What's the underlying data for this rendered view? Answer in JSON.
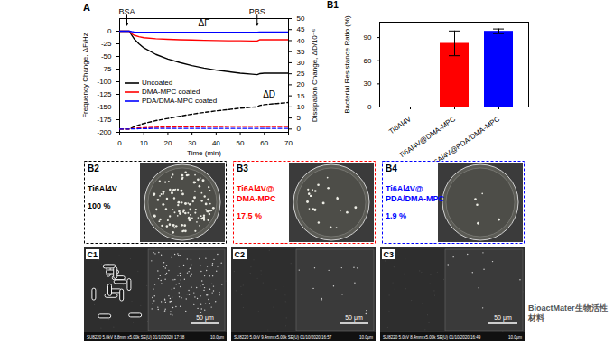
{
  "chart_data": [
    {
      "type": "line",
      "title": "A",
      "xlabel": "Time (min)",
      "ylabel": "Frequency Change, ΔF/Hz",
      "y2label": "Dissipation Change, ΔD/10⁻⁶",
      "x": [
        0,
        2,
        4,
        5,
        6,
        8,
        10,
        15,
        20,
        25,
        30,
        35,
        40,
        45,
        50,
        55,
        57,
        58,
        60,
        65,
        70
      ],
      "series": [
        {
          "name": "Uncoated",
          "color": "#000000",
          "line_style": "solid",
          "values": [
            0,
            0,
            0,
            -8,
            -15,
            -25,
            -33,
            -46,
            -55,
            -62,
            -68,
            -73,
            -77,
            -80,
            -83,
            -85,
            -86,
            -84,
            -83,
            -83,
            -83
          ]
        },
        {
          "name": "DMA-MPC coated",
          "color": "#ff0000",
          "line_style": "solid",
          "values": [
            0,
            0,
            0,
            -5,
            -8,
            -11,
            -13,
            -15,
            -16,
            -17,
            -17.5,
            -18,
            -18.5,
            -19,
            -19,
            -19.5,
            -19.5,
            -17,
            -17,
            -17,
            -17
          ]
        },
        {
          "name": "PDA/DMA-MPC coated",
          "color": "#0000ff",
          "line_style": "solid",
          "values": [
            0,
            0,
            0,
            -1,
            -1.5,
            -2,
            -2,
            -2,
            -2,
            -2,
            -2,
            -2,
            -2,
            -2,
            -2,
            -2,
            -2,
            -1.5,
            -1.5,
            -1.5,
            -1.5
          ]
        },
        {
          "name": "Uncoated",
          "color": "#000000",
          "line_style": "dashed",
          "axis": "y2",
          "values": [
            0,
            0,
            0,
            0.5,
            1,
            1.8,
            2.5,
            3.8,
            4.8,
            5.8,
            6.7,
            7.5,
            8.2,
            8.8,
            9.4,
            9.9,
            10,
            10.6,
            11,
            11.5,
            12
          ]
        },
        {
          "name": "DMA-MPC coated",
          "color": "#ff0000",
          "line_style": "dashed",
          "axis": "y2",
          "values": [
            0,
            0,
            0,
            0.2,
            0.3,
            0.5,
            0.6,
            0.8,
            0.9,
            1,
            1,
            1.1,
            1.1,
            1.2,
            1.2,
            1.2,
            1.2,
            1.1,
            1.1,
            1.1,
            1.1
          ]
        },
        {
          "name": "PDA/DMA-MPC coated",
          "color": "#0000ff",
          "line_style": "dashed",
          "axis": "y2",
          "values": [
            0,
            0,
            0,
            0.1,
            0.1,
            0.2,
            0.2,
            0.3,
            0.3,
            0.3,
            0.3,
            0.3,
            0.3,
            0.3,
            0.3,
            0.3,
            0.3,
            0.3,
            0.3,
            0.3,
            0.3
          ]
        }
      ],
      "xlim": [
        0,
        70
      ],
      "xticks": [
        0,
        10,
        20,
        30,
        40,
        50,
        60,
        70
      ],
      "ylim": [
        -200,
        25
      ],
      "yticks": [
        -200,
        -175,
        -150,
        -125,
        -100,
        -75,
        -50,
        -25,
        0
      ],
      "y2lim": [
        -1.5,
        50
      ],
      "y2ticks": [
        0,
        5,
        10,
        15,
        20,
        25,
        30,
        35,
        40,
        45,
        50
      ],
      "legend": "lower left",
      "annotations": [
        {
          "text": "BSA",
          "x": 3
        },
        {
          "text": "PBS",
          "x": 57
        },
        {
          "text": "ΔF",
          "x": 35,
          "y": 15
        },
        {
          "text": "ΔD",
          "x": 62,
          "y": -125
        }
      ]
    },
    {
      "type": "bar",
      "title": "B1",
      "ylabel": "Bacterial Resistance Ratio (%)",
      "categories": [
        "Ti6Al4V",
        "Ti6Al4V@DMA-MPC",
        "Ti6Al4V@PDA/DMA-MPC"
      ],
      "values": [
        0,
        82.5,
        98.1
      ],
      "errors": [
        0,
        16,
        3
      ],
      "colors": [
        "#000000",
        "#ff0000",
        "#0000ff"
      ],
      "ylim": [
        0,
        110
      ],
      "yticks": [
        0,
        30,
        60,
        90
      ]
    }
  ],
  "plates": [
    {
      "label": "B2",
      "sample": [
        "Ti6Al4V"
      ],
      "ratio": "100 %",
      "color": "#000000"
    },
    {
      "label": "B3",
      "sample": [
        "Ti6Al4V@",
        "DMA-MPC"
      ],
      "ratio": "17.5 %",
      "color": "#ff0000"
    },
    {
      "label": "B4",
      "sample": [
        "Ti6Al4V@",
        "PDA/DMA-MPC"
      ],
      "ratio": "1.9 %",
      "color": "#0000ff"
    }
  ],
  "sem": [
    {
      "label": "C1",
      "scale_bar": "50 μm",
      "info": "SU8220 5.0kV 8.8mm x5.00k SE(U) 01/10/2020 17:38",
      "info_scale": "10.0μm"
    },
    {
      "label": "C2",
      "scale_bar": "50 μm",
      "info": "SU8220 5.0kV 9.4mm x5.00k SE(U) 01/10/2020 16:57",
      "info_scale": "10.0μm"
    },
    {
      "label": "C3",
      "scale_bar": "50 μm",
      "info": "SU8220 5.0kV 8.4mm x5.00k SE(U) 01/10/2020 16:49",
      "info_scale": "10.0μm"
    }
  ],
  "watermark": "BioactMater生物活性材料"
}
